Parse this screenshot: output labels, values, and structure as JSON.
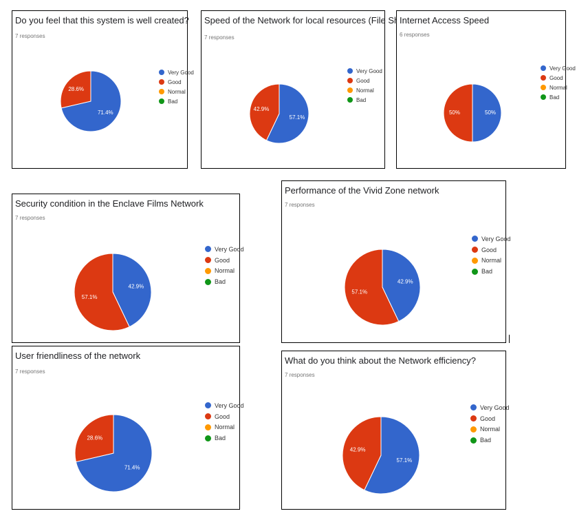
{
  "legend_colors": {
    "very_good": "#3366cc",
    "good": "#dc3912",
    "normal": "#ff9900",
    "bad": "#109618"
  },
  "chart_data": [
    {
      "type": "pie",
      "title": "Do you feel that this system is well created?",
      "subtitle": "7 responses",
      "categories": [
        "Very Good",
        "Good",
        "Normal",
        "Bad"
      ],
      "values": [
        71.4,
        28.6,
        0,
        0
      ],
      "labels": [
        "71.4%",
        "28.6%",
        "",
        ""
      ],
      "legend": "right"
    },
    {
      "type": "pie",
      "title": "Speed of the Network for local resources (File Sharing, printer)",
      "subtitle": "7 responses",
      "categories": [
        "Very Good",
        "Good",
        "Normal",
        "Bad"
      ],
      "values": [
        57.1,
        42.9,
        0,
        0
      ],
      "labels": [
        "57.1%",
        "42.9%",
        "",
        ""
      ],
      "legend": "right"
    },
    {
      "type": "pie",
      "title": "Internet Access Speed",
      "subtitle": "6 responses",
      "categories": [
        "Very Good",
        "Good",
        "Normal",
        "Bad"
      ],
      "values": [
        50,
        50,
        0,
        0
      ],
      "labels": [
        "50%",
        "50%",
        "",
        ""
      ],
      "legend": "right"
    },
    {
      "type": "pie",
      "title": "Security condition in the Enclave Films Network",
      "subtitle": "7 responses",
      "categories": [
        "Very Good",
        "Good",
        "Normal",
        "Bad"
      ],
      "values": [
        42.9,
        57.1,
        0,
        0
      ],
      "labels": [
        "42.9%",
        "57.1%",
        "",
        ""
      ],
      "legend": "right"
    },
    {
      "type": "pie",
      "title": "Performance of the Vivid Zone network",
      "subtitle": "7 responses",
      "categories": [
        "Very Good",
        "Good",
        "Normal",
        "Bad"
      ],
      "values": [
        42.9,
        57.1,
        0,
        0
      ],
      "labels": [
        "42.9%",
        "57.1%",
        "",
        ""
      ],
      "legend": "right"
    },
    {
      "type": "pie",
      "title": "User friendliness of the network",
      "subtitle": "7 responses",
      "categories": [
        "Very Good",
        "Good",
        "Normal",
        "Bad"
      ],
      "values": [
        71.4,
        28.6,
        0,
        0
      ],
      "labels": [
        "71.4%",
        "28.6%",
        "",
        ""
      ],
      "legend": "right"
    },
    {
      "type": "pie",
      "title": "What do you think about the Network efficiency?",
      "subtitle": "7 responses",
      "categories": [
        "Very Good",
        "Good",
        "Normal",
        "Bad"
      ],
      "values": [
        57.1,
        42.9,
        0,
        0
      ],
      "labels": [
        "57.1%",
        "42.9%",
        "",
        ""
      ],
      "legend": "right"
    }
  ]
}
